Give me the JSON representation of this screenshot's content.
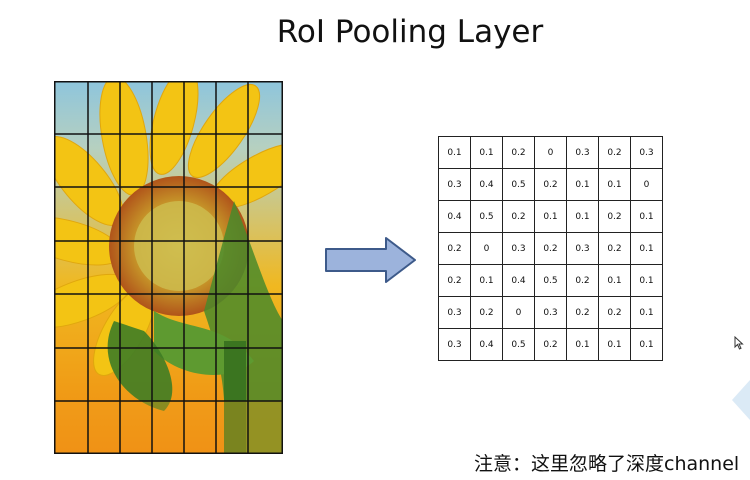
{
  "slide": {
    "title": "RoI Pooling Layer",
    "note": "注意：这里忽略了深度channel"
  },
  "feature_map": {
    "rows": [
      [
        "0.1",
        "0.1",
        "0.2",
        "0",
        "0.3",
        "0.2",
        "0.3"
      ],
      [
        "0.3",
        "0.4",
        "0.5",
        "0.2",
        "0.1",
        "0.1",
        "0"
      ],
      [
        "0.4",
        "0.5",
        "0.2",
        "0.1",
        "0.1",
        "0.2",
        "0.1"
      ],
      [
        "0.2",
        "0",
        "0.3",
        "0.2",
        "0.3",
        "0.2",
        "0.1"
      ],
      [
        "0.2",
        "0.1",
        "0.4",
        "0.5",
        "0.2",
        "0.1",
        "0.1"
      ],
      [
        "0.3",
        "0.2",
        "0",
        "0.3",
        "0.2",
        "0.2",
        "0.1"
      ],
      [
        "0.3",
        "0.4",
        "0.5",
        "0.2",
        "0.1",
        "0.1",
        "0.1"
      ]
    ]
  },
  "image": {
    "subject": "sunflower",
    "grid_cols": 7,
    "grid_rows": 7
  },
  "colors": {
    "arrow_fill": "#9cb3dc",
    "arrow_stroke": "#3d5a8a"
  },
  "icons": [
    "arrow-right-icon",
    "mouse-cursor-icon"
  ]
}
